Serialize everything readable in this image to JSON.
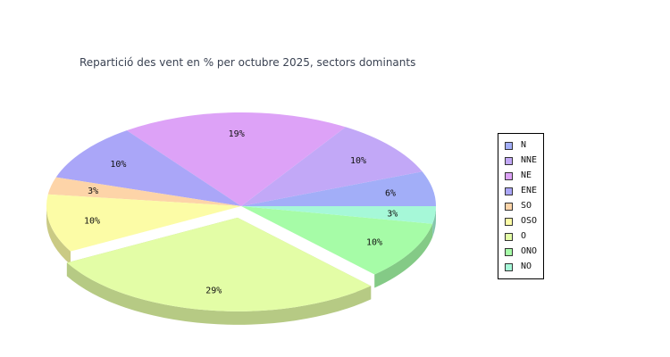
{
  "chart_data": {
    "type": "pie",
    "title": "Repartició des vent en % per octubre 2025, sectors dominants",
    "categories": [
      "N",
      "NNE",
      "NE",
      "ENE",
      "SO",
      "OSO",
      "O",
      "ONO",
      "NO"
    ],
    "values": [
      6,
      10,
      19,
      10,
      3,
      10,
      29,
      10,
      3
    ],
    "data_labels": [
      "6%",
      "10%",
      "19%",
      "10%",
      "3%",
      "10%",
      "29%",
      "10%",
      "3%"
    ],
    "exploded_slice": "O",
    "legend_position": "right",
    "colors": [
      "#a2aef8",
      "#c2a8f7",
      "#dda2f7",
      "#aaa6f8",
      "#fdd4a8",
      "#fcfca6",
      "#e3fda6",
      "#a6fca7",
      "#a6f8d8"
    ],
    "side_colors": [
      "#8288c6",
      "#9c84c6",
      "#b07ec6",
      "#8882c6",
      "#caa886",
      "#caca84",
      "#b6ca84",
      "#84ca86",
      "#84c6ac"
    ]
  }
}
